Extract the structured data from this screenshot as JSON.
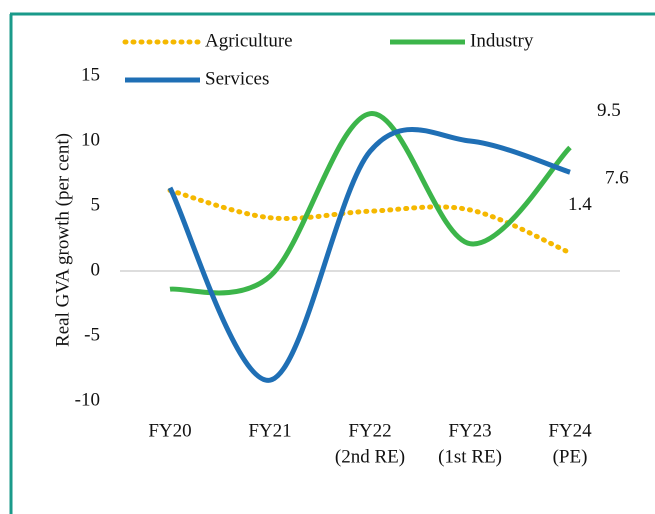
{
  "chart_data": {
    "type": "line",
    "y_label": "Real GVA growth (per cent)",
    "categories": [
      [
        "FY20"
      ],
      [
        "FY21"
      ],
      [
        "FY22",
        "(2nd RE)"
      ],
      [
        "FY23",
        "(1st RE)"
      ],
      [
        "FY24",
        "(PE)"
      ]
    ],
    "series": [
      {
        "name": "Agriculture",
        "color": "#f5b800",
        "dash": "dotted",
        "values": [
          6.2,
          4.1,
          4.6,
          4.7,
          1.4
        ]
      },
      {
        "name": "Industry",
        "color": "#3cb54a",
        "dash": "solid",
        "values": [
          -1.4,
          -0.4,
          12.1,
          2.1,
          9.5
        ]
      },
      {
        "name": "Services",
        "color": "#1f6fb5",
        "dash": "solid",
        "values": [
          6.4,
          -8.4,
          9.2,
          10.0,
          7.6
        ]
      }
    ],
    "ylim": [
      -10,
      15
    ],
    "yticks": [
      -10,
      -5,
      0,
      5,
      10,
      15
    ]
  }
}
